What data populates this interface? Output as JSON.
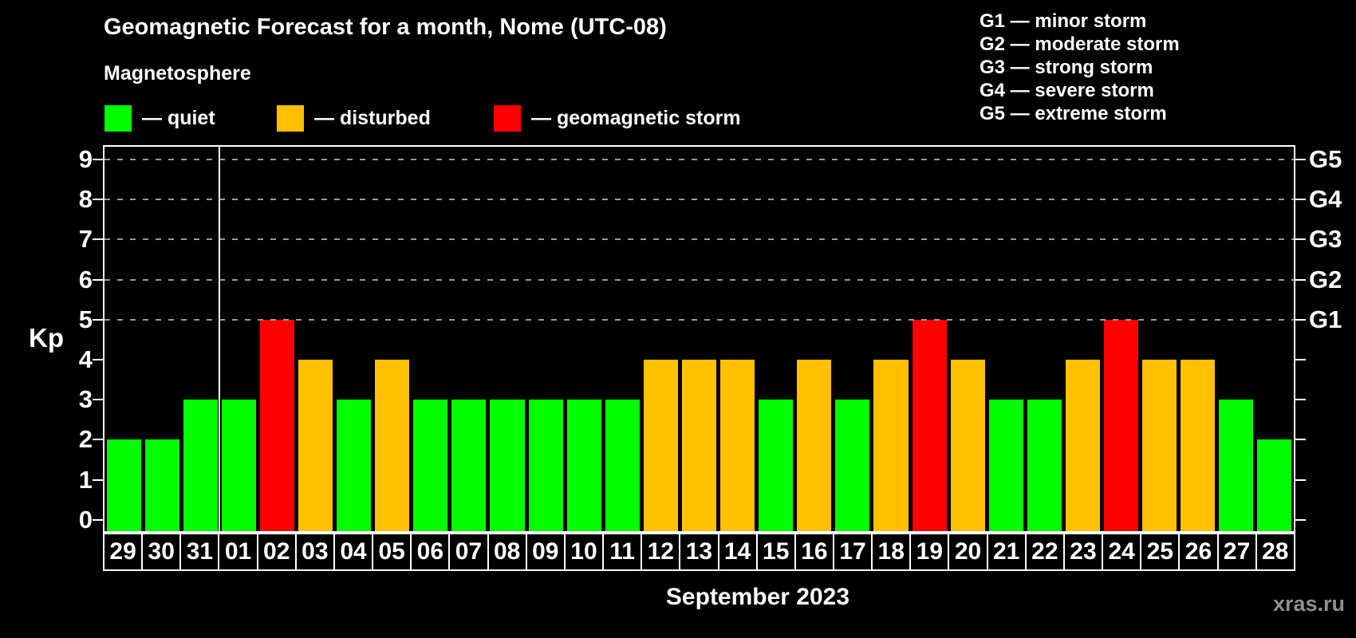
{
  "title": "Geomagnetic Forecast for a month, Nome (UTC-08)",
  "subtitle": "Magnetosphere",
  "status_legend": [
    {
      "label": "— quiet",
      "status": "quiet"
    },
    {
      "label": "— disturbed",
      "status": "disturbed"
    },
    {
      "label": "— geomagnetic storm",
      "status": "storm"
    }
  ],
  "g_legend": [
    "G1 — minor storm",
    "G2 — moderate storm",
    "G3 — strong storm",
    "G4 — severe storm",
    "G5 — extreme storm"
  ],
  "watermark": "xras.ru",
  "colors": {
    "quiet": "#00ff00",
    "disturbed": "#ffc000",
    "storm": "#ff0000",
    "grid": "#9a9a9a",
    "axis": "#ffffff",
    "watermark": "#8f8f8f"
  },
  "chart_data": {
    "type": "bar",
    "title": "Geomagnetic Forecast for a month, Nome (UTC-08)",
    "xlabel": "September 2023",
    "ylabel": "Kp",
    "ylim": [
      0,
      9
    ],
    "grid": "dashed horizontal at Kp 5-9",
    "legend_position": "top",
    "y_ticks": [
      0,
      1,
      2,
      3,
      4,
      5,
      6,
      7,
      8,
      9
    ],
    "gridlines_at": [
      5,
      6,
      7,
      8,
      9
    ],
    "right_axis_labels": [
      {
        "kp": 5,
        "label": "G1"
      },
      {
        "kp": 6,
        "label": "G2"
      },
      {
        "kp": 7,
        "label": "G3"
      },
      {
        "kp": 8,
        "label": "G4"
      },
      {
        "kp": 9,
        "label": "G5"
      }
    ],
    "month_boundary_after_index": 2,
    "categories": [
      "29",
      "30",
      "31",
      "01",
      "02",
      "03",
      "04",
      "05",
      "06",
      "07",
      "08",
      "09",
      "10",
      "11",
      "12",
      "13",
      "14",
      "15",
      "16",
      "17",
      "18",
      "19",
      "20",
      "21",
      "22",
      "23",
      "24",
      "25",
      "26",
      "27",
      "28"
    ],
    "values": [
      2,
      2,
      3,
      3,
      5,
      4,
      3,
      4,
      3,
      3,
      3,
      3,
      3,
      3,
      4,
      4,
      4,
      3,
      4,
      3,
      4,
      5,
      4,
      3,
      3,
      4,
      5,
      4,
      4,
      3,
      2
    ],
    "statuses": [
      "quiet",
      "quiet",
      "quiet",
      "quiet",
      "storm",
      "disturbed",
      "quiet",
      "disturbed",
      "quiet",
      "quiet",
      "quiet",
      "quiet",
      "quiet",
      "quiet",
      "disturbed",
      "disturbed",
      "disturbed",
      "quiet",
      "disturbed",
      "quiet",
      "disturbed",
      "storm",
      "disturbed",
      "quiet",
      "quiet",
      "disturbed",
      "storm",
      "disturbed",
      "disturbed",
      "quiet",
      "quiet"
    ]
  }
}
